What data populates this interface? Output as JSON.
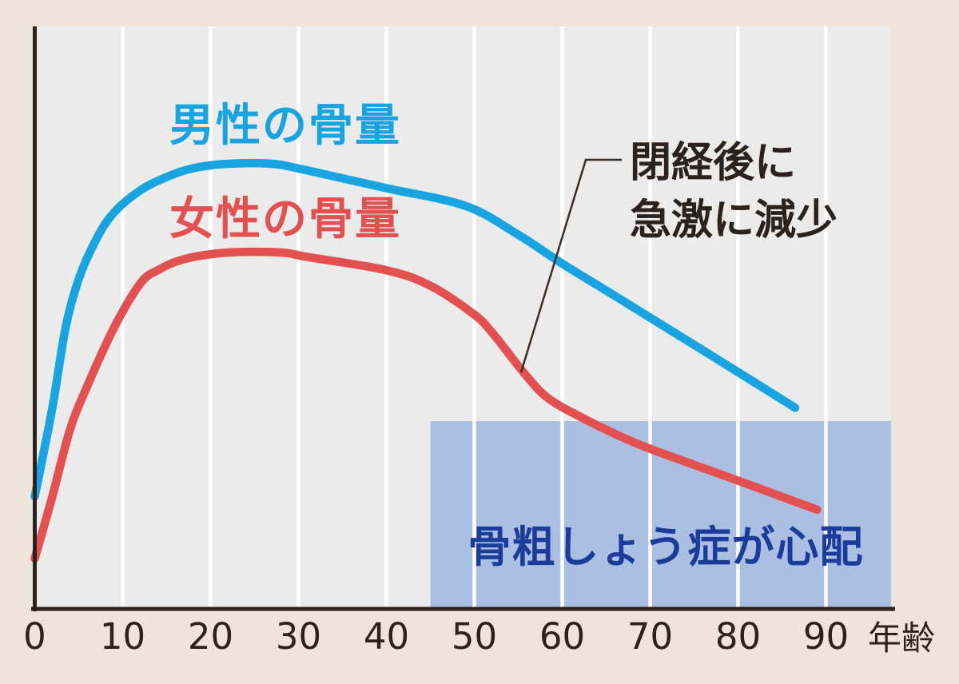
{
  "canvas": {
    "background": "#EDE4DC",
    "plot_background": "#EBEBEB",
    "gridline_color": "#FFFFFF",
    "axis_color": "#2B211D",
    "text_color": "#2B211D"
  },
  "chart_data": {
    "type": "line",
    "title": "",
    "xlabel": "年齢",
    "ylabel": "",
    "x_ticks": [
      0,
      10,
      20,
      30,
      40,
      50,
      60,
      70,
      80,
      90
    ],
    "x_range_drawn": [
      0,
      97
    ],
    "y_axis": "unlabeled relative bone mass (0-100 estimated from pixels)",
    "grid": "vertical gridlines every 10 years, white on light gray",
    "legend_position": "labels drawn directly above each curve",
    "series": [
      {
        "name": "男性の骨量",
        "color": "#18A4E0",
        "points": [
          [
            0,
            25
          ],
          [
            2,
            45
          ],
          [
            3.5,
            63
          ],
          [
            5,
            74
          ],
          [
            7,
            83
          ],
          [
            9,
            89
          ],
          [
            12,
            94
          ],
          [
            15,
            97
          ],
          [
            18,
            99
          ],
          [
            22,
            100
          ],
          [
            27,
            100
          ],
          [
            31,
            98.5
          ],
          [
            40,
            94.5
          ],
          [
            49,
            90.5
          ],
          [
            55,
            84
          ],
          [
            60,
            77.5
          ],
          [
            67,
            69
          ],
          [
            78,
            55.5
          ],
          [
            86.5,
            45
          ]
        ]
      },
      {
        "name": "女性の骨量",
        "color": "#E25150",
        "points": [
          [
            0,
            11
          ],
          [
            2,
            25
          ],
          [
            4,
            40
          ],
          [
            6,
            50
          ],
          [
            9,
            63
          ],
          [
            12,
            73
          ],
          [
            14,
            76
          ],
          [
            17,
            78.5
          ],
          [
            22,
            80
          ],
          [
            28,
            80
          ],
          [
            31,
            79
          ],
          [
            40,
            76
          ],
          [
            45,
            72.5
          ],
          [
            50,
            66
          ],
          [
            52,
            62
          ],
          [
            54,
            57
          ],
          [
            56,
            52
          ],
          [
            58.5,
            47
          ],
          [
            63,
            42
          ],
          [
            69,
            36.5
          ],
          [
            78,
            30
          ],
          [
            89,
            22
          ]
        ]
      }
    ],
    "annotation": {
      "line1": "閉経後に",
      "line2": "急激に減少",
      "points_to": "sharp drop of female curve around age 55",
      "pointer_color": "#3A2D26"
    },
    "highlight_region": {
      "label": "骨粗しょう症が心配",
      "starts_at_age": 45,
      "fill_color": "#ABBFE3",
      "label_color": "#1B3C9B"
    }
  },
  "x_axis": {
    "tick_labels": [
      "0",
      "10",
      "20",
      "30",
      "40",
      "50",
      "60",
      "70",
      "80",
      "90"
    ],
    "unit_label": "年齢"
  }
}
